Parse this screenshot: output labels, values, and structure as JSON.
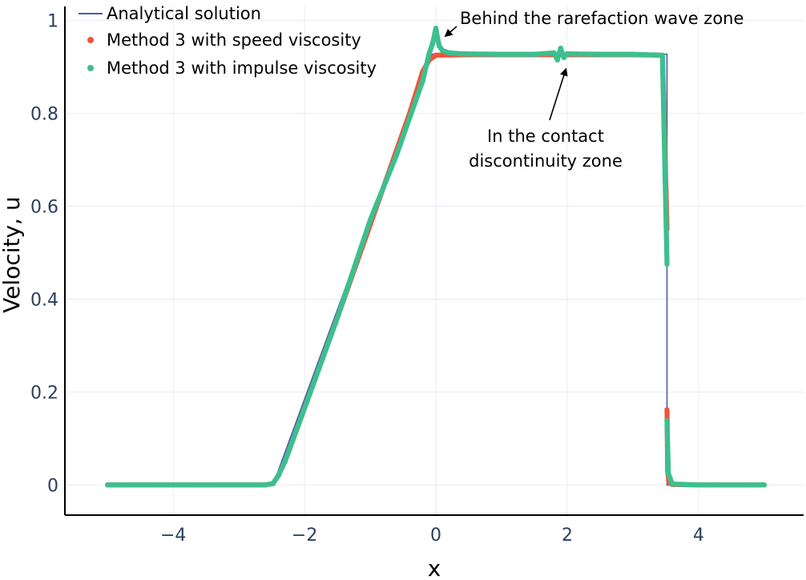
{
  "chart_data": {
    "type": "line",
    "xlabel": "x",
    "ylabel": "Velocity, u",
    "xlim": [
      -5.65,
      5.6
    ],
    "ylim": [
      -0.065,
      1.03
    ],
    "x_ticks": [
      -4,
      -2,
      0,
      2,
      4
    ],
    "x_tick_labels": [
      "−4",
      "−2",
      "0",
      "2",
      "4"
    ],
    "y_ticks": [
      0,
      0.2,
      0.4,
      0.6,
      0.8,
      1
    ],
    "y_tick_labels": [
      "0",
      "0.2",
      "0.4",
      "0.6",
      "0.8",
      "1"
    ],
    "grid": true,
    "legend_position": "top-left",
    "colors": {
      "analytical": "#4c5aa6",
      "speed": "#ef553b",
      "impulse": "#3dbf8f"
    },
    "series": [
      {
        "name": "Analytical solution",
        "style": "line",
        "x": [
          -5,
          -2.48,
          -0.07,
          3.52,
          3.52,
          5
        ],
        "y": [
          0,
          0,
          0.927,
          0.927,
          0,
          0
        ]
      },
      {
        "name": "Method 3 with speed viscosity",
        "style": "markers",
        "x": [
          -5,
          -2.6,
          -2.48,
          -2.4,
          -2.3,
          -2.0,
          -1.5,
          -1.0,
          -0.6,
          -0.4,
          -0.3,
          -0.2,
          -0.1,
          0,
          0.5,
          1,
          1.5,
          1.9,
          2.5,
          3,
          3.45,
          3.52,
          3.52,
          3.53,
          3.55,
          3.6,
          4,
          5
        ],
        "y": [
          0,
          0,
          0.003,
          0.02,
          0.05,
          0.165,
          0.36,
          0.56,
          0.72,
          0.8,
          0.845,
          0.89,
          0.915,
          0.925,
          0.926,
          0.926,
          0.926,
          0.926,
          0.926,
          0.926,
          0.925,
          0.55,
          0.162,
          0.03,
          0.005,
          0.001,
          0,
          0
        ]
      },
      {
        "name": "Method 3 with impulse viscosity",
        "style": "markers",
        "x": [
          -5,
          -2.6,
          -2.48,
          -2.4,
          -2.3,
          -2.0,
          -1.5,
          -1.0,
          -0.6,
          -0.4,
          -0.2,
          -0.1,
          -0.05,
          0,
          0.02,
          0.05,
          0.1,
          0.2,
          0.4,
          1,
          1.5,
          1.8,
          1.85,
          1.9,
          1.95,
          2.0,
          2.5,
          3,
          3.45,
          3.52,
          3.52,
          3.54,
          3.6,
          4,
          5
        ],
        "y": [
          0,
          0,
          0.003,
          0.02,
          0.05,
          0.165,
          0.36,
          0.57,
          0.71,
          0.79,
          0.87,
          0.93,
          0.95,
          0.983,
          0.965,
          0.945,
          0.935,
          0.93,
          0.928,
          0.927,
          0.927,
          0.93,
          0.915,
          0.94,
          0.92,
          0.928,
          0.927,
          0.927,
          0.925,
          0.475,
          0.138,
          0.025,
          0.002,
          0,
          0
        ]
      }
    ],
    "annotations": [
      {
        "text": "Behind the rarefaction wave zone",
        "x": 0.05,
        "y": 0.975,
        "text_x": 1.95,
        "text_y": 1.015
      },
      {
        "text": "In the contact\ndiscontinuity zone",
        "x": 1.93,
        "y": 0.905,
        "text_x": 1.7,
        "text_y": 0.75
      }
    ]
  }
}
